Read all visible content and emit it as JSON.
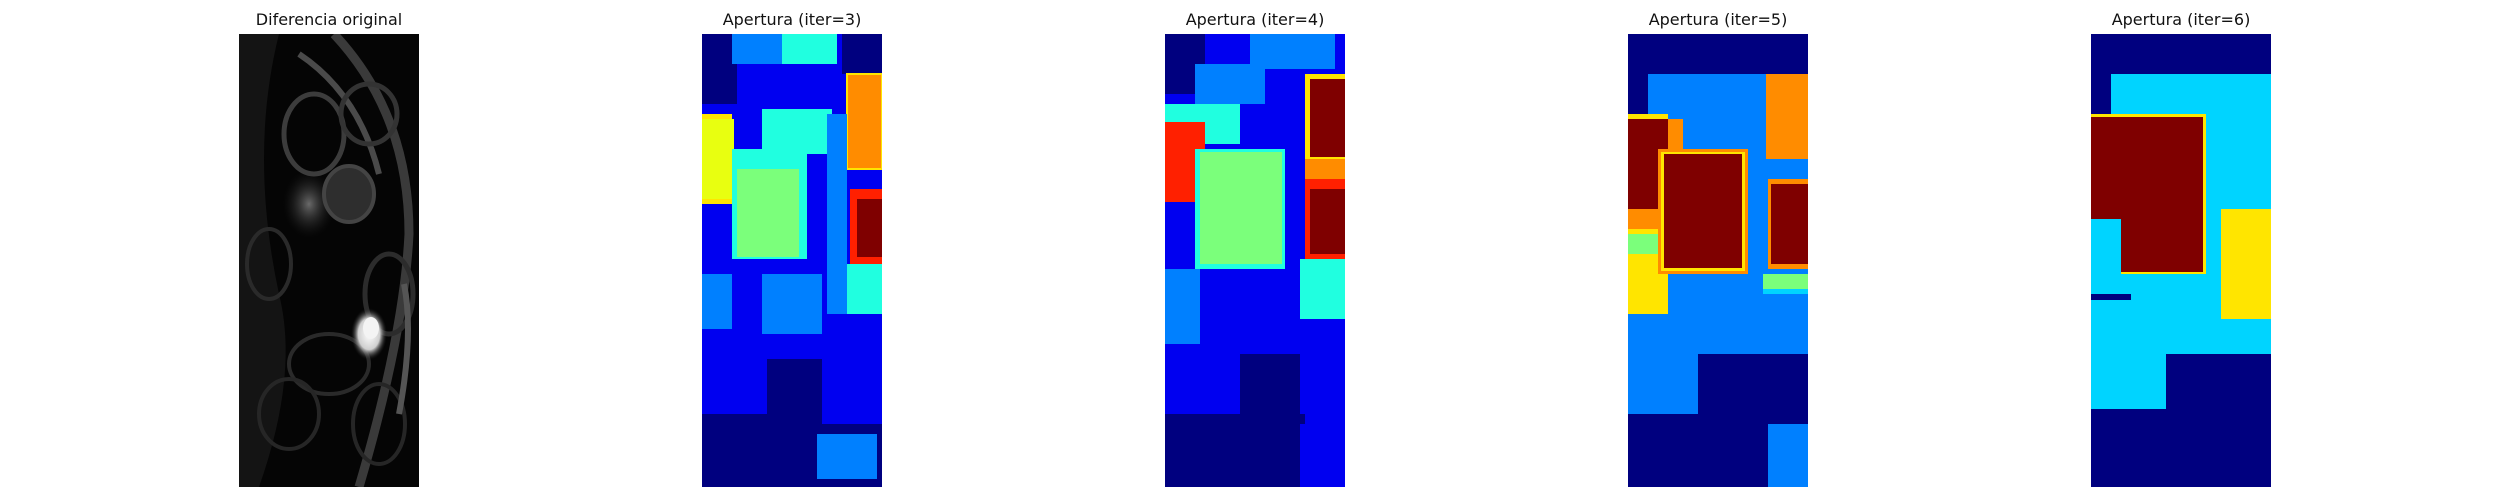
{
  "figure": {
    "panels": [
      {
        "title": "Diferencia original",
        "colormap": "gray"
      },
      {
        "title": "Apertura (iter=3)",
        "colormap": "jet"
      },
      {
        "title": "Apertura (iter=4)",
        "colormap": "jet"
      },
      {
        "title": "Apertura (iter=5)",
        "colormap": "jet"
      },
      {
        "title": "Apertura (iter=6)",
        "colormap": "jet"
      }
    ]
  },
  "colors": {
    "jet_dark_blue": "#00007f",
    "jet_blue": "#0000f0",
    "jet_mid_blue": "#0080ff",
    "jet_light_blue": "#00d4ff",
    "jet_cyan": "#20ffe0",
    "jet_green": "#7bff7b",
    "jet_yellow": "#ffe500",
    "jet_orange": "#ff8c00",
    "jet_red": "#ff2000",
    "jet_dark_red": "#7f0000",
    "gray_black": "#000000"
  }
}
